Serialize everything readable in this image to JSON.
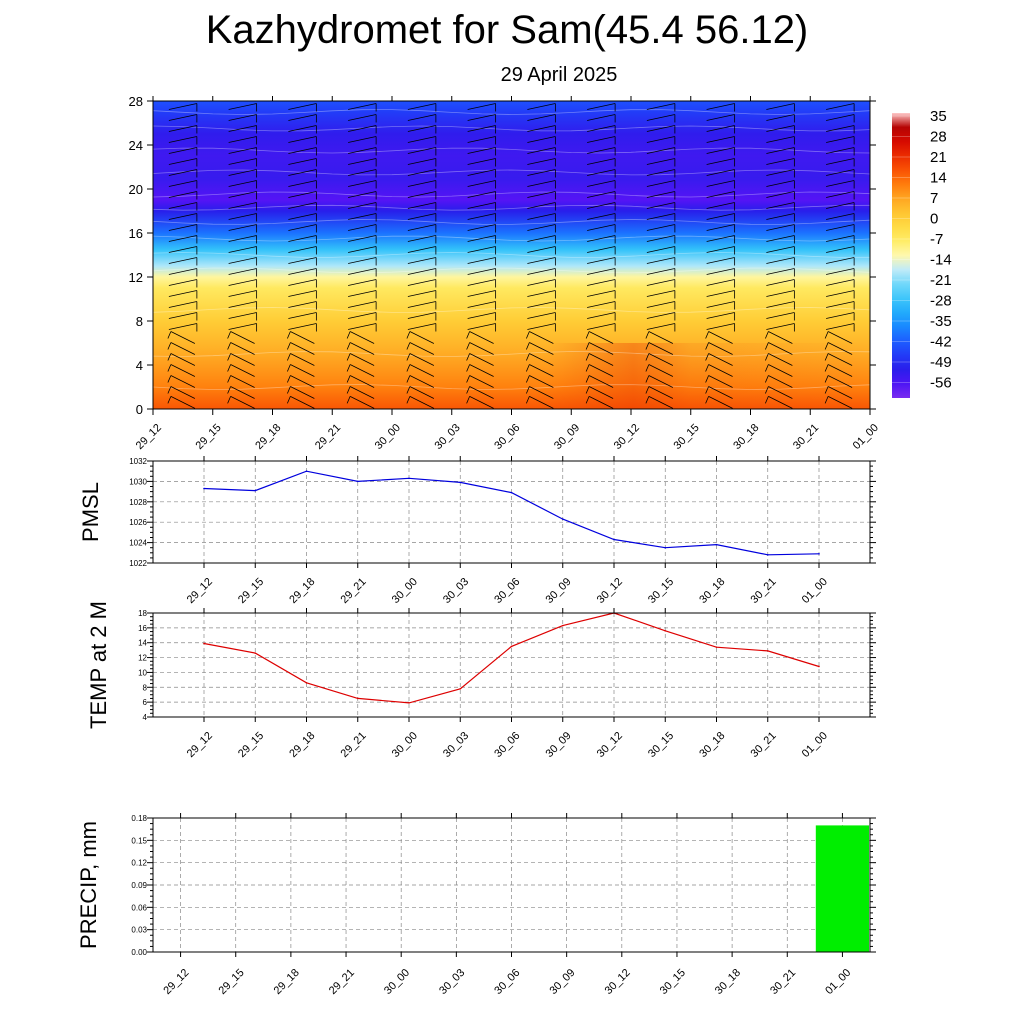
{
  "header": {
    "title": "Kazhydromet for Sam(45.4 56.12)",
    "date": "29 April 2025"
  },
  "colors": {
    "pmsl_line": "#0000dd",
    "temp_line": "#dd0000",
    "precip_bar": "#00ee00",
    "cs_cold": "#7a2cf0",
    "cs_warm": "#ff6a00"
  },
  "chart_data": [
    {
      "type": "heatmap",
      "name": "temperature-wind cross section",
      "x_ticks": [
        "29_12",
        "29_15",
        "29_18",
        "29_21",
        "30_00",
        "30_03",
        "30_06",
        "30_09",
        "30_12",
        "30_15",
        "30_18",
        "30_21",
        "01_00"
      ],
      "y_ticks": [
        0,
        4,
        8,
        12,
        16,
        20,
        24,
        28
      ],
      "ylim": [
        0,
        28
      ],
      "colorbar": {
        "labels": [
          "35",
          "28",
          "21",
          "14",
          "7",
          "0",
          "-7",
          "-14",
          "-21",
          "-28",
          "-35",
          "-42",
          "-49",
          "-56"
        ],
        "range": [
          -60,
          38
        ]
      },
      "level_temps": [
        {
          "level": 0,
          "temp": 18
        },
        {
          "level": 2,
          "temp": 13
        },
        {
          "level": 5,
          "temp": 8
        },
        {
          "level": 8,
          "temp": 2
        },
        {
          "level": 11,
          "temp": -5
        },
        {
          "level": 12,
          "temp": -10
        },
        {
          "level": 13,
          "temp": -17
        },
        {
          "level": 14.5,
          "temp": -27
        },
        {
          "level": 16,
          "temp": -38
        },
        {
          "level": 18,
          "temp": -50
        },
        {
          "level": 19,
          "temp": -56
        },
        {
          "level": 21,
          "temp": -52
        },
        {
          "level": 23,
          "temp": -53
        },
        {
          "level": 25,
          "temp": -51
        },
        {
          "level": 27,
          "temp": -45
        },
        {
          "level": 28,
          "temp": -42
        }
      ],
      "wind_barb_levels": [
        0.6,
        1.5,
        2.5,
        3.5,
        4.5,
        5.5,
        6.5,
        7.5,
        8.5,
        9.5,
        10.5,
        11.5,
        12.5,
        13.5,
        14.5,
        15.5,
        16.5,
        17.5,
        18.5,
        19.5,
        20.5,
        21.5,
        22.5,
        23.5,
        24.5,
        25.5,
        26.5,
        27.5
      ]
    },
    {
      "type": "line",
      "name": "PMSL",
      "ylabel": "PMSL",
      "x": [
        "29_12",
        "29_15",
        "29_18",
        "29_21",
        "30_00",
        "30_03",
        "30_06",
        "30_09",
        "30_12",
        "30_15",
        "30_18",
        "30_21",
        "01_00"
      ],
      "values": [
        1029.3,
        1029.1,
        1031.0,
        1030.0,
        1030.3,
        1029.9,
        1028.9,
        1026.3,
        1024.3,
        1023.5,
        1023.8,
        1022.8,
        1022.9
      ],
      "ylim": [
        1022,
        1032
      ],
      "y_ticks": [
        1022,
        1024,
        1026,
        1028,
        1030,
        1032
      ],
      "grid": true
    },
    {
      "type": "line",
      "name": "TEMP at 2 M",
      "ylabel": "TEMP at 2 M",
      "x": [
        "29_12",
        "29_15",
        "29_18",
        "29_21",
        "30_00",
        "30_03",
        "30_06",
        "30_09",
        "30_12",
        "30_15",
        "30_18",
        "30_21",
        "01_00"
      ],
      "values": [
        13.9,
        12.6,
        8.6,
        6.5,
        5.9,
        7.8,
        13.5,
        16.3,
        18.0,
        15.6,
        13.4,
        12.9,
        10.8
      ],
      "ylim": [
        4,
        18
      ],
      "y_ticks": [
        4,
        6,
        8,
        10,
        12,
        14,
        16,
        18
      ],
      "grid": true
    },
    {
      "type": "bar",
      "name": "PRECIP, mm",
      "ylabel": "PRECIP, mm",
      "x": [
        "29_12",
        "29_15",
        "29_18",
        "29_21",
        "30_00",
        "30_03",
        "30_06",
        "30_09",
        "30_12",
        "30_15",
        "30_18",
        "30_21",
        "01_00"
      ],
      "values": [
        0,
        0,
        0,
        0,
        0,
        0,
        0,
        0,
        0,
        0,
        0,
        0,
        0.17
      ],
      "ylim": [
        0,
        0.18
      ],
      "y_ticks": [
        "0.00",
        "0.03",
        "0.06",
        "0.09",
        "0.12",
        "0.15",
        "0.18"
      ],
      "grid": true
    }
  ]
}
